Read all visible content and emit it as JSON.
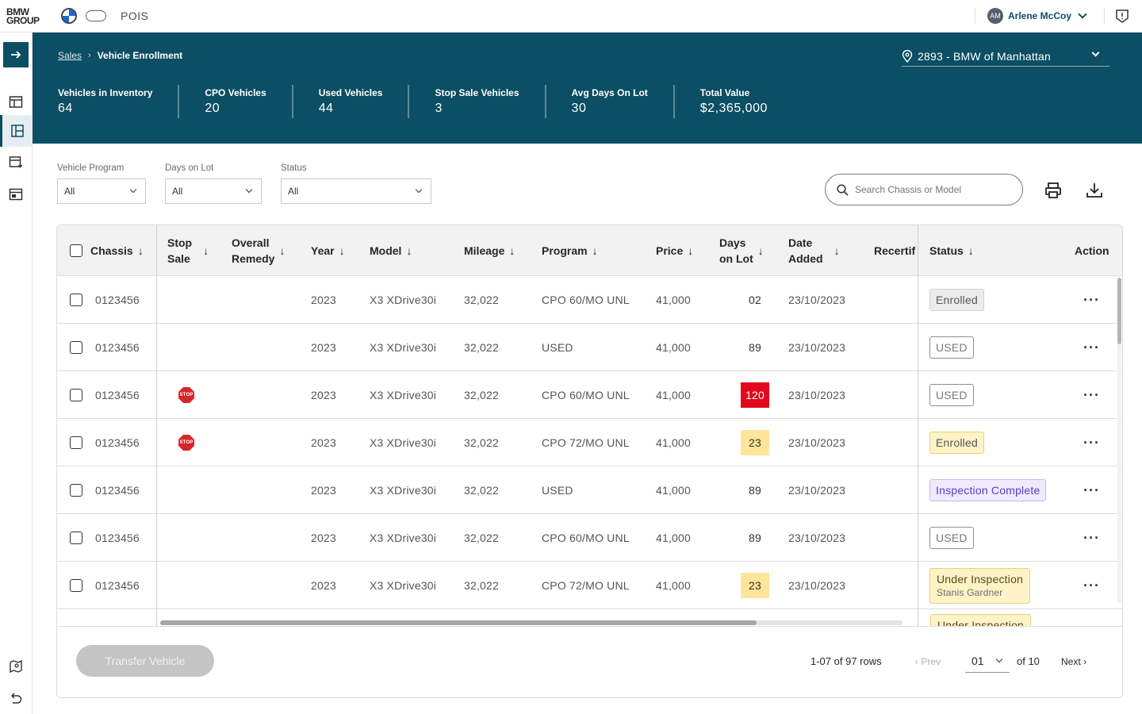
{
  "brand": {
    "line1": "BMW",
    "line2": "GROUP",
    "app_name": "POIS"
  },
  "user": {
    "initials": "AM",
    "name": "Arlene McCoy"
  },
  "breadcrumb": {
    "parent": "Sales",
    "separator": "›",
    "current": "Vehicle Enrollment"
  },
  "dealer": {
    "label": "2893 - BMW of Manhattan"
  },
  "stats": [
    {
      "label": "Vehicles in Inventory",
      "value": "64"
    },
    {
      "label": "CPO Vehicles",
      "value": "20"
    },
    {
      "label": "Used Vehicles",
      "value": "44"
    },
    {
      "label": "Stop Sale Vehicles",
      "value": "3"
    },
    {
      "label": "Avg Days On Lot",
      "value": "30"
    },
    {
      "label": "Total Value",
      "value": "$2,365,000"
    }
  ],
  "filters": {
    "program": {
      "label": "Vehicle Program",
      "value": "All"
    },
    "days": {
      "label": "Days on Lot",
      "value": "All"
    },
    "status": {
      "label": "Status",
      "value": "All"
    }
  },
  "search": {
    "placeholder": "Search Chassis or Model"
  },
  "table": {
    "headers": {
      "chassis": "Chassis",
      "stop_sale_1": "Stop",
      "stop_sale_2": "Sale",
      "remedy_1": "Overall",
      "remedy_2": "Remedy",
      "year": "Year",
      "model": "Model",
      "mileage": "Mileage",
      "program": "Program",
      "price": "Price",
      "days_1": "Days",
      "days_2": "on Lot",
      "date_1": "Date",
      "date_2": "Added",
      "recertif": "Recertif",
      "status": "Status",
      "action": "Action",
      "sort_arrow": "↓"
    },
    "rows": [
      {
        "chassis": "0123456",
        "stop_sale": false,
        "year": "2023",
        "model": "X3 XDrive30i",
        "mileage": "32,022",
        "program": "CPO 60/MO UNL",
        "price": "41,000",
        "days": "02",
        "days_style": "plain",
        "date": "23/10/2023",
        "status": "Enrolled",
        "status_style": "enrolled-grey",
        "status_sub": ""
      },
      {
        "chassis": "0123456",
        "stop_sale": false,
        "year": "2023",
        "model": "X3 XDrive30i",
        "mileage": "32,022",
        "program": "USED",
        "price": "41,000",
        "days": "89",
        "days_style": "plain",
        "date": "23/10/2023",
        "status": "USED",
        "status_style": "used",
        "status_sub": ""
      },
      {
        "chassis": "0123456",
        "stop_sale": true,
        "year": "2023",
        "model": "X3 XDrive30i",
        "mileage": "32,022",
        "program": "CPO 60/MO UNL",
        "price": "41,000",
        "days": "120",
        "days_style": "red",
        "date": "23/10/2023",
        "status": "USED",
        "status_style": "used",
        "status_sub": ""
      },
      {
        "chassis": "0123456",
        "stop_sale": true,
        "year": "2023",
        "model": "X3 XDrive30i",
        "mileage": "32,022",
        "program": "CPO 72/MO UNL",
        "price": "41,000",
        "days": "23",
        "days_style": "yellow",
        "date": "23/10/2023",
        "status": "Enrolled",
        "status_style": "enrolled-yellow",
        "status_sub": ""
      },
      {
        "chassis": "0123456",
        "stop_sale": false,
        "year": "2023",
        "model": "X3 XDrive30i",
        "mileage": "32,022",
        "program": "USED",
        "price": "41,000",
        "days": "89",
        "days_style": "plain",
        "date": "23/10/2023",
        "status": "Inspection Complete",
        "status_style": "inspection",
        "status_sub": ""
      },
      {
        "chassis": "0123456",
        "stop_sale": false,
        "year": "2023",
        "model": "X3 XDrive30i",
        "mileage": "32,022",
        "program": "CPO 60/MO UNL",
        "price": "41,000",
        "days": "89",
        "days_style": "plain",
        "date": "23/10/2023",
        "status": "USED",
        "status_style": "used",
        "status_sub": ""
      },
      {
        "chassis": "0123456",
        "stop_sale": false,
        "year": "2023",
        "model": "X3 XDrive30i",
        "mileage": "32,022",
        "program": "CPO 72/MO UNL",
        "price": "41,000",
        "days": "23",
        "days_style": "yellow",
        "date": "23/10/2023",
        "status": "Under Inspection",
        "status_style": "under",
        "status_sub": "Stanis Gardner"
      }
    ],
    "partial_row_status": "Under Inspection",
    "stop_icon_text": "STOP",
    "action_glyph": "···"
  },
  "footer": {
    "transfer_label": "Transfer Vehicle",
    "rows_text": "1-07 of 97 rows",
    "prev_label": "‹ Prev",
    "page_value": "01",
    "of_pages": "of 10",
    "next_label": "Next ›"
  },
  "colors": {
    "primary": "#0c4e63",
    "stop_red": "#d7262b",
    "days_red": "#e1081c",
    "days_yellow": "#fde59a"
  }
}
